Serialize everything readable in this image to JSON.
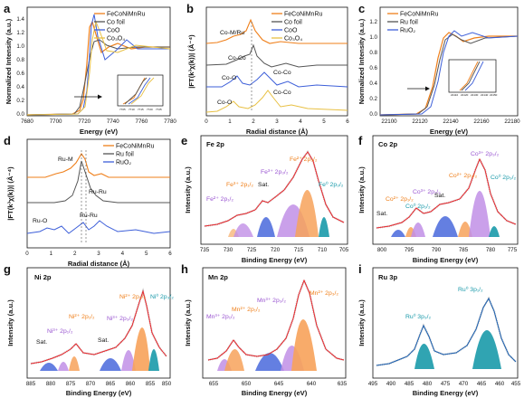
{
  "figure": {
    "panels": {
      "a": {
        "label": "a",
        "legend": [
          "FeCoNiMnRu",
          "Co foil",
          "CoO",
          "Co₃O₄"
        ],
        "xlabel": "Energy (eV)",
        "ylabel": "Normalized Intensity (a.u.)",
        "xticks": [
          "7680",
          "7700",
          "7720",
          "7740",
          "7760",
          "7780"
        ],
        "yticks": [
          "0.0",
          "0.2",
          "0.4",
          "0.6",
          "0.8",
          "1.0",
          "1.2",
          "1.4"
        ],
        "inset_xticks": [
          "7705",
          "7710",
          "7715",
          "7720",
          "7725"
        ]
      },
      "b": {
        "label": "b",
        "legend": [
          "FeCoNiMnRu",
          "Co foil",
          "CoO",
          "Co₃O₄"
        ],
        "xlabel": "Radial distance (Å)",
        "ylabel": "|FT(k³χ(k))| (Å⁻⁴)",
        "xticks": [
          "0",
          "1",
          "2",
          "3",
          "4",
          "5",
          "6"
        ],
        "annotations": [
          "Co-M/Ru",
          "Co-Co",
          "Co-O",
          "Co-Co",
          "Co-Co",
          "Co-O"
        ]
      },
      "c": {
        "label": "c",
        "legend": [
          "FeCoNiMnRu",
          "Ru foil",
          "RuO₂"
        ],
        "xlabel": "Energy (eV)",
        "ylabel": "Normalized Intensity (a.u.)",
        "xticks": [
          "22100",
          "22120",
          "22140",
          "22160",
          "22180"
        ],
        "yticks": [
          "0.0",
          "0.2",
          "0.4",
          "0.6",
          "0.8",
          "1.0",
          "1.2"
        ],
        "inset_xticks": [
          "22110",
          "22120",
          "22130",
          "22140",
          "22150"
        ]
      },
      "d": {
        "label": "d",
        "legend": [
          "FeCoNiMnRu",
          "Ru foil",
          "RuO₂"
        ],
        "xlabel": "Radial distance (Å)",
        "ylabel": "|FT(k³χ(k))| (Å⁻⁴)",
        "xticks": [
          "0",
          "1",
          "2",
          "3",
          "4",
          "5",
          "6"
        ],
        "annotations": [
          "Ru-M",
          "Ru-Ru",
          "Ru-O",
          "Ru-Ru"
        ]
      },
      "e": {
        "label": "e",
        "title": "Fe 2p",
        "xlabel": "Binding Energy (eV)",
        "ylabel": "Intensity (a.u.)",
        "xticks": [
          "735",
          "730",
          "725",
          "720",
          "715",
          "710",
          "705"
        ],
        "annotations": [
          "Fe²⁺ 2p₁/₂",
          "Fe³⁺ 2p₁/₂",
          "Sat.",
          "Fe³⁺ 2p₃/₂",
          "Fe²⁺ 2p₃/₂",
          "Fe⁰ 2p₃/₂"
        ]
      },
      "f": {
        "label": "f",
        "title": "Co 2p",
        "xlabel": "Binding Energy (eV)",
        "ylabel": "Intensity (a.u.)",
        "xticks": [
          "800",
          "795",
          "790",
          "785",
          "780",
          "775"
        ],
        "annotations": [
          "Sat.",
          "Co²⁺ 2p₁/₂",
          "Co³⁺ 2p₁/₂",
          "Co⁰ 2p₁/₂",
          "Sat.",
          "Co²⁺ 2p₃/₂",
          "Co³⁺ 2p₃/₂",
          "Co⁰ 2p₃/₂"
        ]
      },
      "g": {
        "label": "g",
        "title": "Ni 2p",
        "xlabel": "Binding Energy (eV)",
        "ylabel": "Intensity (a.u.)",
        "xticks": [
          "885",
          "880",
          "875",
          "870",
          "865",
          "860",
          "855",
          "850"
        ],
        "annotations": [
          "Sat.",
          "Ni³⁺ 2p₁/₂",
          "Ni²⁺ 2p₁/₂",
          "Ni³⁺ 2p₃/₂",
          "Sat.",
          "Ni²⁺ 2p₃/₂",
          "Ni⁰ 2p₃/₂"
        ]
      },
      "h": {
        "label": "h",
        "title": "Mn 2p",
        "xlabel": "Binding Energy (eV)",
        "ylabel": "Intensity (a.u.)",
        "xticks": [
          "655",
          "650",
          "645",
          "640",
          "635"
        ],
        "annotations": [
          "Mn³⁺ 2p₁/₂",
          "Mn²⁺ 2p₁/₂",
          "Mn³⁺ 2p₃/₂",
          "Mn²⁺ 2p₃/₂"
        ]
      },
      "i": {
        "label": "i",
        "title": "Ru 3p",
        "xlabel": "Binding Energy (eV)",
        "ylabel": "Intensity (a.u.)",
        "xticks": [
          "495",
          "490",
          "485",
          "480",
          "475",
          "470",
          "465",
          "460",
          "455"
        ],
        "annotations": [
          "Ru⁰ 3p₃/₂",
          "Ru⁰ 3p₁/₂"
        ]
      }
    },
    "colors": {
      "orange": "#ef7f1a",
      "blue": "#3d5fd9",
      "purple": "#9a56d1",
      "teal": "#1a9aaa",
      "red": "#e8262c",
      "grey": "#777777",
      "lightgrey": "#c9c9c9"
    }
  }
}
